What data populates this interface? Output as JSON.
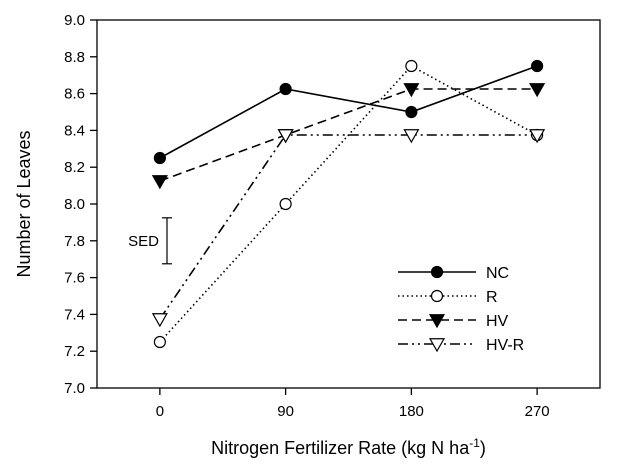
{
  "chart_data": {
    "type": "line",
    "xlabel_main": "Nitrogen Fertilizer Rate (kg N ha",
    "xlabel_sup": "-1",
    "xlabel_close": ")",
    "ylabel": "Number of Leaves",
    "x_categories": [
      "0",
      "90",
      "180",
      "270"
    ],
    "x": [
      0,
      90,
      180,
      270
    ],
    "xlim": [
      -45,
      315
    ],
    "ylim": [
      7.0,
      9.0
    ],
    "yticks": [
      "7.0",
      "7.2",
      "7.4",
      "7.6",
      "7.8",
      "8.0",
      "8.2",
      "8.4",
      "8.6",
      "8.8",
      "9.0"
    ],
    "grid": false,
    "legend_position": "bottom-right",
    "series": [
      {
        "name": "NC",
        "values": [
          8.25,
          8.625,
          8.5,
          8.75
        ],
        "line": "solid",
        "marker": "circle-filled",
        "color": "#000000"
      },
      {
        "name": "R",
        "values": [
          7.25,
          8.0,
          8.75,
          8.375
        ],
        "line": "dotted",
        "marker": "circle-open",
        "color": "#000000"
      },
      {
        "name": "HV",
        "values": [
          8.125,
          8.375,
          8.625,
          8.625
        ],
        "line": "dashed",
        "marker": "triangle-down-filled",
        "color": "#000000"
      },
      {
        "name": "HV-R",
        "values": [
          7.375,
          8.375,
          8.375,
          8.375
        ],
        "line": "dash-dot-dot",
        "marker": "triangle-down-open",
        "color": "#000000"
      }
    ],
    "annotation": {
      "label": "SED",
      "low": 7.675,
      "high": 7.925
    }
  }
}
